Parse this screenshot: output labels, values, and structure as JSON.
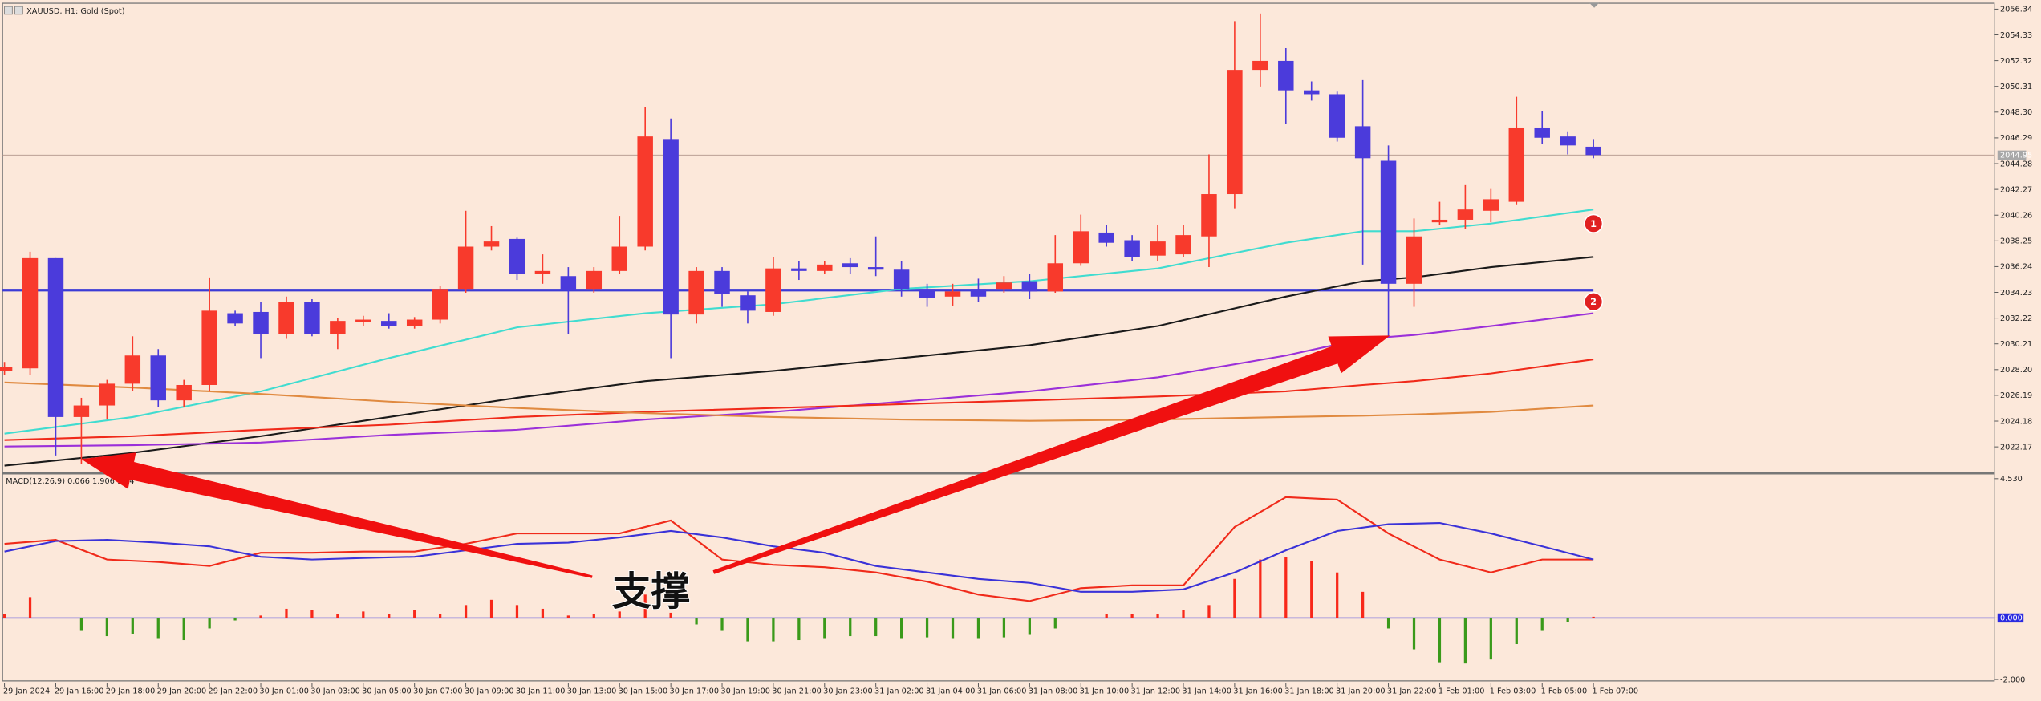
{
  "chart_data": {
    "type": "candlestick",
    "title": "XAUUSD, H1: Gold (Spot)",
    "categories": [
      "29 Jan 2024",
      null,
      "29 Jan 16:00",
      null,
      "29 Jan 18:00",
      null,
      "29 Jan 20:00",
      null,
      "29 Jan 22:00",
      null,
      "30 Jan 01:00",
      null,
      "30 Jan 03:00",
      null,
      "30 Jan 05:00",
      null,
      "30 Jan 07:00",
      null,
      "30 Jan 09:00",
      null,
      "30 Jan 11:00",
      null,
      "30 Jan 13:00",
      null,
      "30 Jan 15:00",
      null,
      "30 Jan 17:00",
      null,
      "30 Jan 19:00",
      null,
      "30 Jan 21:00",
      null,
      "30 Jan 23:00",
      null,
      "31 Jan 02:00",
      null,
      "31 Jan 04:00",
      null,
      "31 Jan 06:00",
      null,
      "31 Jan 08:00",
      null,
      "31 Jan 10:00",
      null,
      "31 Jan 12:00",
      null,
      "31 Jan 14:00",
      null,
      "31 Jan 16:00",
      null,
      "31 Jan 18:00",
      null,
      "31 Jan 20:00",
      null,
      "31 Jan 22:00",
      null,
      "1 Feb 01:00",
      null,
      "1 Feb 03:00",
      null,
      "1 Feb 05:00",
      null,
      "1 Feb 07:00"
    ],
    "open": [
      2028.1,
      2028.3,
      2036.9,
      2024.5,
      2025.4,
      2027.1,
      2029.3,
      2025.8,
      2027.0,
      2032.6,
      2032.7,
      2031.0,
      2033.5,
      2031.0,
      2031.9,
      2032.0,
      2031.6,
      2032.1,
      2034.5,
      2037.8,
      2038.4,
      2035.7,
      2035.5,
      2034.5,
      2035.9,
      2037.8,
      2046.2,
      2032.5,
      2035.9,
      2034.0,
      2032.7,
      2036.1,
      2035.9,
      2036.5,
      2036.2,
      2036.0,
      2034.5,
      2033.9,
      2034.5,
      2034.5,
      2035.1,
      2034.3,
      2036.5,
      2038.9,
      2038.3,
      2037.1,
      2037.2,
      2038.6,
      2041.9,
      2051.6,
      2052.3,
      2050.0,
      2049.7,
      2047.2,
      2044.5,
      2034.9,
      2039.7,
      2039.9,
      2040.6,
      2041.3,
      2047.1,
      2046.4,
      2045.6
    ],
    "high": [
      2028.8,
      2037.4,
      2036.9,
      2026.0,
      2027.4,
      2030.8,
      2029.8,
      2027.4,
      2035.4,
      2032.8,
      2033.5,
      2033.9,
      2033.7,
      2032.2,
      2032.4,
      2032.6,
      2032.3,
      2034.7,
      2040.6,
      2039.4,
      2038.5,
      2037.2,
      2036.2,
      2036.2,
      2040.2,
      2048.7,
      2047.8,
      2036.2,
      2036.2,
      2034.3,
      2037.0,
      2036.7,
      2036.7,
      2036.9,
      2038.6,
      2036.7,
      2034.9,
      2034.9,
      2035.3,
      2035.5,
      2035.7,
      2038.7,
      2040.3,
      2039.5,
      2038.7,
      2039.5,
      2039.5,
      2045.0,
      2055.4,
      2056.0,
      2053.3,
      2050.7,
      2049.9,
      2050.8,
      2045.7,
      2040.0,
      2041.3,
      2042.6,
      2042.3,
      2049.5,
      2048.4,
      2046.8,
      2046.2
    ],
    "low": [
      2027.8,
      2027.8,
      2021.5,
      2020.8,
      2024.3,
      2026.5,
      2025.3,
      2025.3,
      2026.5,
      2031.6,
      2029.1,
      2030.6,
      2030.8,
      2029.8,
      2031.6,
      2031.4,
      2031.4,
      2031.8,
      2034.2,
      2037.5,
      2035.2,
      2034.9,
      2031.0,
      2034.2,
      2035.7,
      2037.5,
      2029.1,
      2031.8,
      2033.1,
      2031.8,
      2032.4,
      2035.2,
      2035.7,
      2035.7,
      2035.5,
      2033.9,
      2033.1,
      2033.2,
      2033.5,
      2034.2,
      2033.7,
      2034.2,
      2036.3,
      2037.8,
      2036.7,
      2036.7,
      2037.0,
      2036.2,
      2040.8,
      2050.3,
      2047.4,
      2049.2,
      2046.0,
      2036.4,
      2030.8,
      2033.1,
      2039.5,
      2039.2,
      2039.7,
      2041.1,
      2045.8,
      2045.0,
      2044.7
    ],
    "close": [
      2028.4,
      2036.9,
      2024.5,
      2025.4,
      2027.1,
      2029.3,
      2025.8,
      2027.0,
      2032.8,
      2031.8,
      2031.0,
      2033.5,
      2031.0,
      2032.0,
      2032.1,
      2031.6,
      2032.1,
      2034.5,
      2037.8,
      2038.2,
      2035.7,
      2035.9,
      2034.4,
      2035.9,
      2037.8,
      2046.4,
      2032.5,
      2035.9,
      2034.1,
      2032.8,
      2036.1,
      2035.9,
      2036.4,
      2036.2,
      2036.0,
      2034.5,
      2033.8,
      2034.3,
      2033.9,
      2035.0,
      2034.3,
      2036.5,
      2039.0,
      2038.1,
      2037.0,
      2038.2,
      2038.7,
      2041.9,
      2051.6,
      2052.3,
      2050.0,
      2049.7,
      2046.3,
      2044.7,
      2034.9,
      2038.6,
      2039.9,
      2040.7,
      2041.5,
      2047.1,
      2046.3,
      2045.7,
      2044.95
    ],
    "up_color": "#f83a2c",
    "down_color": "#4b3bdb",
    "ylim": [
      2020.3,
      2056.75
    ],
    "yticks": [
      2056.34,
      2054.33,
      2052.32,
      2050.31,
      {
        "value": 2048.3,
        "label": "2048.30"
      },
      2046.29,
      2044.28,
      2042.27,
      2040.26,
      2038.25,
      2036.24,
      2034.23,
      2032.22,
      2030.21,
      {
        "value": 2028.2,
        "label": "2028.20"
      },
      2026.19,
      2024.18,
      2022.17
    ],
    "bid": 2044.95,
    "levels": [
      2034.4
    ],
    "level_color": "#3b3bd6",
    "moving_averages": [
      {
        "color": "#40dcd0",
        "x": [
          0,
          5,
          10,
          15,
          20,
          25,
          30,
          35,
          40,
          45,
          50,
          53,
          55,
          58,
          62
        ],
        "values": [
          2023.2,
          2024.5,
          2026.5,
          2029.1,
          2031.5,
          2032.6,
          2033.3,
          2034.5,
          2035.1,
          2036.1,
          2038.1,
          2039.0,
          2039.0,
          2039.6,
          2040.7
        ]
      },
      {
        "color": "#1a1a1a",
        "x": [
          0,
          5,
          10,
          15,
          20,
          25,
          30,
          35,
          40,
          45,
          50,
          53,
          55,
          58,
          62
        ],
        "values": [
          2020.7,
          2021.7,
          2023.0,
          2024.5,
          2026.0,
          2027.3,
          2028.1,
          2029.1,
          2030.1,
          2031.6,
          2033.9,
          2035.1,
          2035.4,
          2036.2,
          2037.0
        ]
      },
      {
        "color": "#9b30d9",
        "x": [
          0,
          5,
          10,
          15,
          20,
          25,
          30,
          35,
          40,
          45,
          50,
          53,
          55,
          58,
          62
        ],
        "values": [
          2022.2,
          2022.3,
          2022.5,
          2023.1,
          2023.5,
          2024.3,
          2024.9,
          2025.7,
          2026.5,
          2027.6,
          2029.3,
          2030.6,
          2030.9,
          2031.6,
          2032.6
        ]
      },
      {
        "color": "#f02a1a",
        "x": [
          0,
          5,
          10,
          15,
          20,
          25,
          30,
          35,
          40,
          45,
          50,
          53,
          55,
          58,
          62
        ],
        "values": [
          2022.7,
          2023.0,
          2023.5,
          2023.9,
          2024.5,
          2024.9,
          2025.2,
          2025.5,
          2025.8,
          2026.1,
          2026.5,
          2027.0,
          2027.3,
          2027.9,
          2029.0
        ]
      },
      {
        "color": "#e08a40",
        "x": [
          0,
          5,
          10,
          15,
          20,
          25,
          30,
          35,
          40,
          45,
          50,
          53,
          55,
          58,
          62
        ],
        "values": [
          2027.2,
          2026.8,
          2026.3,
          2025.7,
          2025.2,
          2024.8,
          2024.5,
          2024.3,
          2024.2,
          2024.3,
          2024.5,
          2024.6,
          2024.7,
          2024.9,
          2025.4
        ]
      }
    ],
    "markers": [
      {
        "label": "1",
        "x": 62,
        "value": 2039.6
      },
      {
        "label": "2",
        "x": 62,
        "value": 2033.5
      }
    ],
    "marker_color": "#e02020",
    "annotation": "支撑",
    "macd": {
      "title": "MACD(12,26,9) 0.066 1.906 1.84",
      "ylim": [
        -2.11,
        4.66
      ],
      "yticks": [
        {
          "value": 4.53,
          "label": "4.530"
        },
        {
          "value": 0,
          "label": "0.000"
        },
        {
          "value": -2,
          "label": "-2.000"
        }
      ],
      "histogram": [
        0.13,
        0.68,
        0,
        -0.42,
        -0.59,
        -0.51,
        -0.68,
        -0.72,
        -0.34,
        -0.08,
        0.08,
        0.3,
        0.25,
        0.13,
        0.21,
        0.13,
        0.25,
        0.13,
        0.42,
        0.59,
        0.42,
        0.3,
        0.08,
        0.13,
        0.21,
        0.76,
        0.17,
        -0.21,
        -0.42,
        -0.76,
        -0.76,
        -0.72,
        -0.68,
        -0.59,
        -0.59,
        -0.68,
        -0.63,
        -0.68,
        -0.68,
        -0.63,
        -0.55,
        -0.34,
        0,
        0.13,
        0.13,
        0.13,
        0.25,
        0.42,
        1.27,
        1.9,
        1.99,
        1.86,
        1.48,
        0.85,
        -0.34,
        -1.02,
        -1.44,
        -1.48,
        -1.35,
        -0.85,
        -0.42,
        -0.13,
        0.04
      ],
      "hist_up_color": "#f8281a",
      "hist_down_color": "#3a9a1a",
      "zero_color": "#2a2ae0",
      "lines": [
        {
          "color": "#f02a1a",
          "x": [
            0,
            2,
            4,
            6,
            8,
            10,
            12,
            14,
            16,
            18,
            20,
            22,
            24,
            26,
            28,
            30,
            32,
            34,
            36,
            38,
            40,
            42,
            44,
            46,
            48,
            50,
            52,
            54,
            56,
            58,
            60,
            62
          ],
          "values": [
            2.41,
            2.54,
            1.9,
            1.82,
            1.69,
            2.12,
            2.12,
            2.16,
            2.16,
            2.41,
            2.75,
            2.75,
            2.75,
            3.17,
            1.9,
            1.73,
            1.65,
            1.48,
            1.18,
            0.76,
            0.55,
            0.97,
            1.06,
            1.06,
            2.96,
            3.93,
            3.85,
            2.75,
            1.9,
            1.48,
            1.9,
            1.9
          ]
        },
        {
          "color": "#3a32d8",
          "x": [
            0,
            2,
            4,
            6,
            8,
            10,
            12,
            14,
            16,
            18,
            20,
            22,
            24,
            26,
            28,
            30,
            32,
            34,
            36,
            38,
            40,
            42,
            44,
            46,
            48,
            50,
            52,
            54,
            56,
            58,
            60,
            62
          ],
          "values": [
            2.16,
            2.5,
            2.54,
            2.45,
            2.33,
            1.99,
            1.9,
            1.95,
            1.99,
            2.2,
            2.41,
            2.45,
            2.62,
            2.83,
            2.62,
            2.33,
            2.12,
            1.69,
            1.48,
            1.27,
            1.14,
            0.85,
            0.85,
            0.93,
            1.48,
            2.2,
            2.83,
            3.05,
            3.09,
            2.75,
            2.33,
            1.9
          ]
        }
      ]
    }
  }
}
